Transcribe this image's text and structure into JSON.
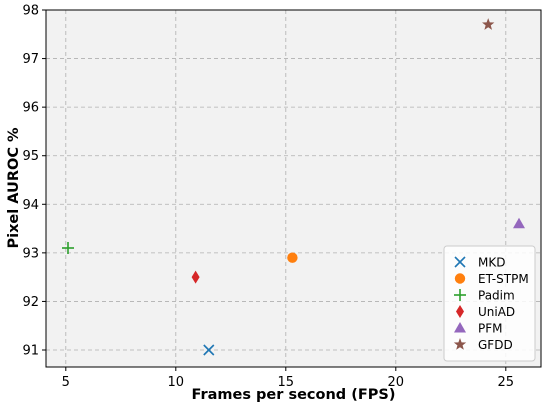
{
  "chart_data": {
    "type": "scatter",
    "xlabel": "Frames per second (FPS)",
    "ylabel": "Pixel AUROC %",
    "xlim": [
      4.1,
      26.6
    ],
    "ylim": [
      90.65,
      98.0
    ],
    "x_ticks": [
      5,
      10,
      15,
      20,
      25
    ],
    "y_ticks": [
      91,
      92,
      93,
      94,
      95,
      96,
      97,
      98
    ],
    "grid": true,
    "legend_position": "lower-right",
    "background_color": "#f2f2f2",
    "series": [
      {
        "name": "MKD",
        "x": 11.5,
        "y": 91.0,
        "marker": "x",
        "color": "#1f77b4"
      },
      {
        "name": "ET-STPM",
        "x": 15.3,
        "y": 92.9,
        "marker": "circle",
        "color": "#ff7f0e"
      },
      {
        "name": "Padim",
        "x": 5.1,
        "y": 93.1,
        "marker": "plus",
        "color": "#2ca02c"
      },
      {
        "name": "UniAD",
        "x": 10.9,
        "y": 92.5,
        "marker": "thin-diamond",
        "color": "#d62728"
      },
      {
        "name": "PFM",
        "x": 25.6,
        "y": 93.6,
        "marker": "triangle",
        "color": "#9467bd"
      },
      {
        "name": "GFDD",
        "x": 24.2,
        "y": 97.7,
        "marker": "star",
        "color": "#8c564b"
      }
    ]
  }
}
